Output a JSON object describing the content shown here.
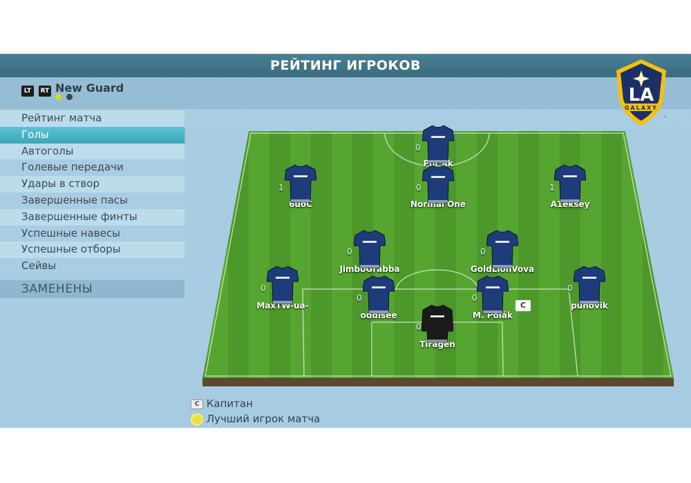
{
  "header": {
    "title": "РЕЙТИНГ ИГРОКОВ"
  },
  "team": {
    "lt": "LT",
    "rt": "RT",
    "name": "New Guard",
    "page_dots": [
      "#c8e020",
      "#3a4650"
    ]
  },
  "menu": {
    "items": [
      "Рейтинг матча",
      "Голы",
      "Автоголы",
      "Голевые передачи",
      "Удары в створ",
      "Завершенные пасы",
      "Завершенные финты",
      "Успешные навесы",
      "Успешные отборы",
      "Сейвы"
    ],
    "selected": "Голы",
    "subs_label": "ЗАМЕНЕНЫ"
  },
  "logo": {
    "text": "LA",
    "sub": "GALAXY",
    "tm": "™"
  },
  "players": [
    {
      "name": "Por      ak",
      "value": "0",
      "kit": "outfield"
    },
    {
      "name": "6uoC",
      "value": "1",
      "kit": "outfield"
    },
    {
      "name": "Normal One",
      "value": "0",
      "kit": "outfield"
    },
    {
      "name": "A1eksey",
      "value": "1",
      "kit": "outfield"
    },
    {
      "name": "JimboGrabba",
      "value": "0",
      "kit": "outfield"
    },
    {
      "name": "GoldLionVova",
      "value": "0",
      "kit": "outfield"
    },
    {
      "name": "MaxTW-ua-",
      "value": "0",
      "kit": "outfield"
    },
    {
      "name": "oddisee",
      "value": "0",
      "kit": "outfield"
    },
    {
      "name": "M. Polák",
      "value": "0",
      "kit": "outfield",
      "captain": true
    },
    {
      "name": "puhovik",
      "value": "0",
      "kit": "outfield"
    },
    {
      "name": "Tiragen",
      "value": "0",
      "kit": "goalkeeper"
    }
  ],
  "legend": {
    "captain_badge": "C",
    "captain": "Капитан",
    "motm": "Лучший игрок матча"
  },
  "colors": {
    "header": "#3d6e80",
    "selected": "#4bb5c6",
    "kit": "#1f3c7a",
    "gk_kit": "#1a1a1a",
    "pitch": "#4f9a2a"
  }
}
